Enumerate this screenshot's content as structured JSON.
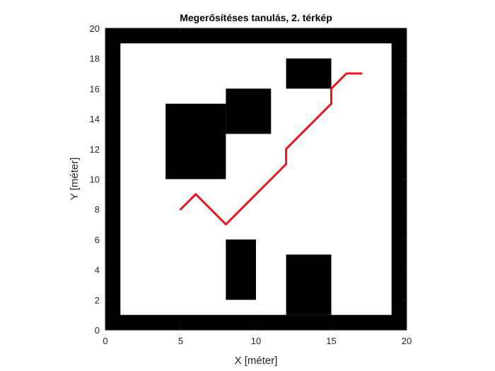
{
  "chart_data": {
    "type": "line",
    "title": "Megerősítéses tanulás, 2. térkép",
    "xlabel": "X [méter]",
    "ylabel": "Y [méter]",
    "xlim": [
      0,
      20
    ],
    "ylim": [
      0,
      20
    ],
    "xticks": [
      0,
      5,
      10,
      15,
      20
    ],
    "yticks": [
      0,
      2,
      4,
      6,
      8,
      10,
      12,
      14,
      16,
      18,
      20
    ],
    "grid": false,
    "obstacle_color": "#000000",
    "path_color": "#e8151b",
    "obstacles": [
      {
        "name": "border-left",
        "x": [
          0,
          1
        ],
        "y": [
          0,
          20
        ]
      },
      {
        "name": "border-right",
        "x": [
          19,
          20
        ],
        "y": [
          0,
          20
        ]
      },
      {
        "name": "border-bottom",
        "x": [
          0,
          20
        ],
        "y": [
          0,
          1
        ]
      },
      {
        "name": "border-top",
        "x": [
          0,
          20
        ],
        "y": [
          19,
          20
        ]
      },
      {
        "name": "block-large-left",
        "x": [
          4,
          8
        ],
        "y": [
          10,
          15
        ]
      },
      {
        "name": "block-upper-middle",
        "x": [
          8,
          11
        ],
        "y": [
          13,
          16
        ]
      },
      {
        "name": "block-top-right",
        "x": [
          12,
          15
        ],
        "y": [
          16,
          18
        ]
      },
      {
        "name": "block-lower-middle",
        "x": [
          8,
          10
        ],
        "y": [
          2,
          6
        ]
      },
      {
        "name": "block-lower-right",
        "x": [
          12,
          15
        ],
        "y": [
          1,
          5
        ]
      }
    ],
    "series": [
      {
        "x": [
          5,
          6,
          7,
          8,
          9,
          10,
          11,
          12,
          12,
          13,
          14,
          15,
          15,
          16,
          17
        ],
        "y": [
          8,
          9,
          8,
          7,
          8,
          9,
          10,
          11,
          12,
          13,
          14,
          15,
          16,
          17,
          17
        ]
      }
    ]
  }
}
